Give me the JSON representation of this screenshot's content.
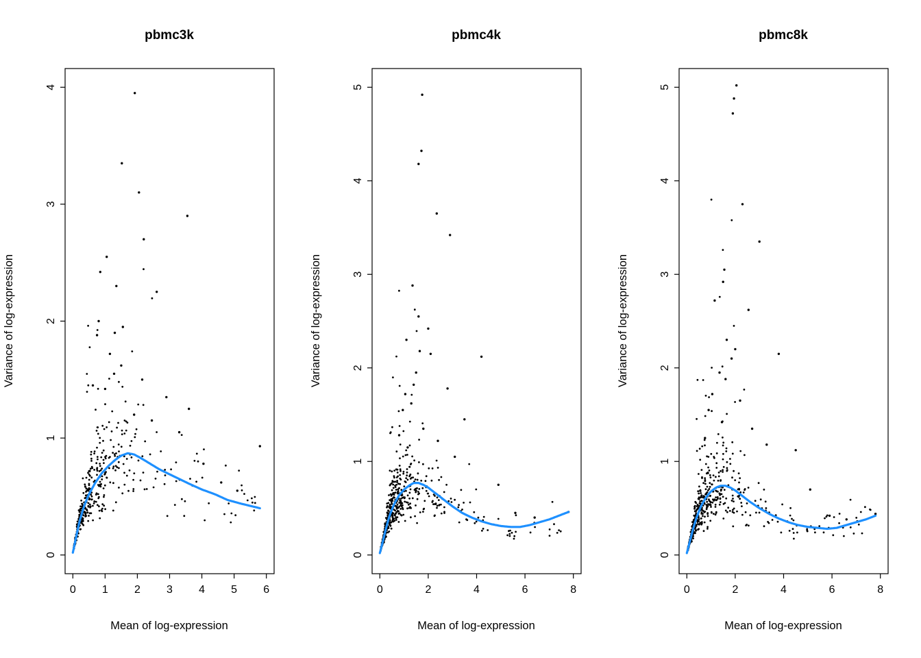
{
  "styles": {
    "background": "#ffffff",
    "point_color": "#000000",
    "trend_color": "#1E90FF",
    "axis_color": "#000000",
    "trend_width": 3.2,
    "point_radius": 1.4
  },
  "chart_data": [
    {
      "type": "scatter",
      "title": "pbmc3k",
      "xlabel": "Mean of log-expression",
      "ylabel": "Variance of log-expression",
      "xlim": [
        0,
        6
      ],
      "ylim": [
        0,
        4
      ],
      "xticks": [
        0,
        1,
        2,
        3,
        4,
        5,
        6
      ],
      "yticks": [
        0,
        1,
        2,
        3,
        4
      ],
      "grid": false,
      "legend": false,
      "trend": [
        [
          0,
          0.02
        ],
        [
          0.1,
          0.15
        ],
        [
          0.2,
          0.28
        ],
        [
          0.35,
          0.42
        ],
        [
          0.5,
          0.52
        ],
        [
          0.7,
          0.62
        ],
        [
          0.9,
          0.7
        ],
        [
          1.1,
          0.76
        ],
        [
          1.3,
          0.81
        ],
        [
          1.5,
          0.85
        ],
        [
          1.7,
          0.87
        ],
        [
          1.9,
          0.86
        ],
        [
          2.1,
          0.83
        ],
        [
          2.4,
          0.78
        ],
        [
          2.7,
          0.73
        ],
        [
          3.0,
          0.69
        ],
        [
          3.3,
          0.65
        ],
        [
          3.6,
          0.61
        ],
        [
          4.0,
          0.56
        ],
        [
          4.4,
          0.52
        ],
        [
          4.8,
          0.47
        ],
        [
          5.2,
          0.44
        ],
        [
          5.5,
          0.42
        ],
        [
          5.8,
          0.4
        ]
      ],
      "outliers": [
        [
          1.92,
          3.95
        ],
        [
          1.52,
          3.35
        ],
        [
          2.05,
          3.1
        ],
        [
          3.55,
          2.9
        ],
        [
          2.2,
          2.7
        ],
        [
          1.05,
          2.55
        ],
        [
          0.85,
          2.42
        ],
        [
          1.35,
          2.3
        ],
        [
          2.6,
          2.25
        ],
        [
          0.8,
          2.0
        ],
        [
          1.55,
          1.95
        ],
        [
          1.3,
          1.9
        ],
        [
          0.75,
          1.88
        ],
        [
          1.15,
          1.72
        ],
        [
          1.5,
          1.62
        ],
        [
          1.28,
          1.55
        ],
        [
          2.15,
          1.5
        ],
        [
          0.62,
          1.45
        ],
        [
          1.0,
          1.42
        ],
        [
          2.9,
          1.35
        ],
        [
          3.6,
          1.25
        ],
        [
          1.9,
          1.2
        ],
        [
          2.45,
          1.15
        ],
        [
          3.3,
          1.05
        ],
        [
          4.05,
          0.78
        ],
        [
          4.6,
          0.62
        ],
        [
          5.1,
          0.55
        ],
        [
          5.8,
          0.93
        ]
      ],
      "bulk": {
        "n": 430,
        "seed": 12345,
        "mix": 0.87,
        "expo_scale": 0.62,
        "x_max": 5.7,
        "sigma": 0.34,
        "big_frac": 0.05
      }
    },
    {
      "type": "scatter",
      "title": "pbmc4k",
      "xlabel": "Mean of log-expression",
      "ylabel": "Variance of log-expression",
      "xlim": [
        0,
        8
      ],
      "ylim": [
        0,
        5
      ],
      "xticks": [
        0,
        2,
        4,
        6,
        8
      ],
      "yticks": [
        0,
        1,
        2,
        3,
        4,
        5
      ],
      "grid": false,
      "legend": false,
      "trend": [
        [
          0,
          0.02
        ],
        [
          0.1,
          0.12
        ],
        [
          0.25,
          0.28
        ],
        [
          0.4,
          0.42
        ],
        [
          0.6,
          0.55
        ],
        [
          0.8,
          0.64
        ],
        [
          1.0,
          0.7
        ],
        [
          1.2,
          0.74
        ],
        [
          1.4,
          0.77
        ],
        [
          1.6,
          0.77
        ],
        [
          1.8,
          0.75
        ],
        [
          2.0,
          0.72
        ],
        [
          2.3,
          0.66
        ],
        [
          2.6,
          0.6
        ],
        [
          3.0,
          0.52
        ],
        [
          3.4,
          0.45
        ],
        [
          3.8,
          0.4
        ],
        [
          4.2,
          0.36
        ],
        [
          4.6,
          0.33
        ],
        [
          5.0,
          0.31
        ],
        [
          5.4,
          0.3
        ],
        [
          5.8,
          0.3
        ],
        [
          6.2,
          0.32
        ],
        [
          6.6,
          0.35
        ],
        [
          7.0,
          0.38
        ],
        [
          7.4,
          0.42
        ],
        [
          7.8,
          0.46
        ]
      ],
      "outliers": [
        [
          1.75,
          4.92
        ],
        [
          1.72,
          4.32
        ],
        [
          1.6,
          4.18
        ],
        [
          2.35,
          3.65
        ],
        [
          2.9,
          3.42
        ],
        [
          1.35,
          2.88
        ],
        [
          1.6,
          2.55
        ],
        [
          2.0,
          2.42
        ],
        [
          1.1,
          2.3
        ],
        [
          1.65,
          2.18
        ],
        [
          2.1,
          2.15
        ],
        [
          4.2,
          2.12
        ],
        [
          1.5,
          1.95
        ],
        [
          1.4,
          1.82
        ],
        [
          2.8,
          1.78
        ],
        [
          1.05,
          1.72
        ],
        [
          1.3,
          1.62
        ],
        [
          0.95,
          1.55
        ],
        [
          3.5,
          1.45
        ],
        [
          1.8,
          1.35
        ],
        [
          0.8,
          1.28
        ],
        [
          2.4,
          1.22
        ],
        [
          1.15,
          1.15
        ],
        [
          3.1,
          1.05
        ],
        [
          4.9,
          0.75
        ],
        [
          5.6,
          0.45
        ],
        [
          6.4,
          0.4
        ],
        [
          7.8,
          0.46
        ]
      ],
      "bulk": {
        "n": 560,
        "seed": 23456,
        "mix": 0.87,
        "expo_scale": 0.68,
        "x_max": 7.6,
        "sigma": 0.32,
        "big_frac": 0.05
      }
    },
    {
      "type": "scatter",
      "title": "pbmc8k",
      "xlabel": "Mean of log-expression",
      "ylabel": "Variance of log-expression",
      "xlim": [
        0,
        8
      ],
      "ylim": [
        0,
        5
      ],
      "xticks": [
        0,
        2,
        4,
        6,
        8
      ],
      "yticks": [
        0,
        1,
        2,
        3,
        4,
        5
      ],
      "grid": false,
      "legend": false,
      "trend": [
        [
          0,
          0.02
        ],
        [
          0.1,
          0.12
        ],
        [
          0.25,
          0.27
        ],
        [
          0.4,
          0.4
        ],
        [
          0.6,
          0.53
        ],
        [
          0.8,
          0.62
        ],
        [
          1.0,
          0.68
        ],
        [
          1.2,
          0.72
        ],
        [
          1.4,
          0.74
        ],
        [
          1.6,
          0.74
        ],
        [
          1.8,
          0.72
        ],
        [
          2.0,
          0.69
        ],
        [
          2.3,
          0.63
        ],
        [
          2.6,
          0.57
        ],
        [
          3.0,
          0.5
        ],
        [
          3.4,
          0.44
        ],
        [
          3.8,
          0.39
        ],
        [
          4.2,
          0.35
        ],
        [
          4.6,
          0.32
        ],
        [
          5.0,
          0.3
        ],
        [
          5.4,
          0.29
        ],
        [
          5.8,
          0.28
        ],
        [
          6.2,
          0.29
        ],
        [
          6.6,
          0.32
        ],
        [
          7.0,
          0.35
        ],
        [
          7.4,
          0.38
        ],
        [
          7.8,
          0.42
        ]
      ],
      "outliers": [
        [
          2.05,
          5.02
        ],
        [
          1.95,
          4.88
        ],
        [
          1.9,
          4.72
        ],
        [
          2.3,
          3.75
        ],
        [
          3.0,
          3.35
        ],
        [
          1.55,
          3.05
        ],
        [
          1.5,
          2.92
        ],
        [
          1.15,
          2.72
        ],
        [
          2.55,
          2.62
        ],
        [
          1.65,
          2.3
        ],
        [
          2.0,
          2.2
        ],
        [
          3.8,
          2.15
        ],
        [
          1.85,
          2.1
        ],
        [
          1.35,
          1.95
        ],
        [
          1.6,
          1.88
        ],
        [
          1.05,
          1.72
        ],
        [
          2.2,
          1.65
        ],
        [
          0.9,
          1.55
        ],
        [
          1.45,
          1.42
        ],
        [
          2.7,
          1.35
        ],
        [
          0.75,
          1.25
        ],
        [
          3.3,
          1.18
        ],
        [
          4.5,
          1.12
        ],
        [
          5.1,
          0.7
        ],
        [
          5.9,
          0.42
        ],
        [
          6.6,
          0.38
        ],
        [
          7.8,
          0.44
        ]
      ],
      "bulk": {
        "n": 580,
        "seed": 34567,
        "mix": 0.87,
        "expo_scale": 0.68,
        "x_max": 7.6,
        "sigma": 0.32,
        "big_frac": 0.05
      }
    }
  ]
}
